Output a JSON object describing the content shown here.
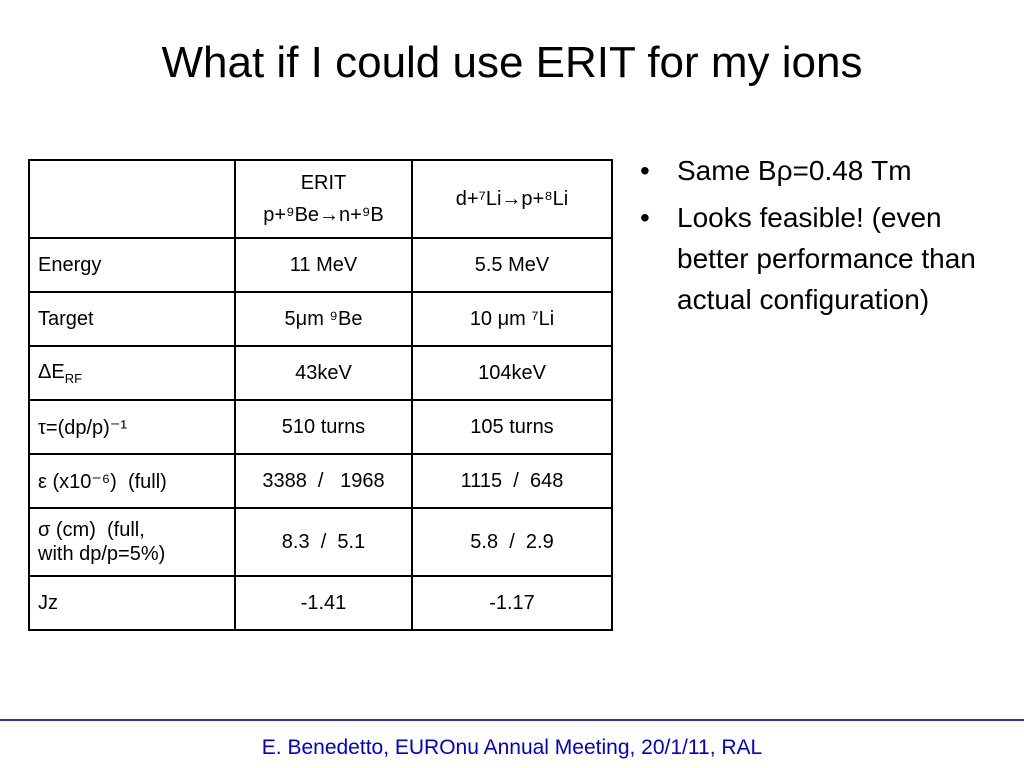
{
  "title": "What if I could use ERIT for my ions",
  "table": {
    "header": [
      "",
      "ERIT\np+⁹Be→n+⁹B",
      "d+⁷Li→p+⁸Li"
    ],
    "rows": [
      [
        "Energy",
        "11 MeV",
        "5.5 MeV"
      ],
      [
        "Target",
        "5μm ⁹Be",
        "10 μm ⁷Li"
      ],
      [
        {
          "text": "ΔE",
          "subscript": "RF"
        },
        "43keV",
        "104keV"
      ],
      [
        "τ=(dp/p)⁻¹",
        "510 turns",
        "105 turns"
      ],
      [
        "ε (x10⁻⁶)  (full)",
        "3388  /   1968",
        "1115  /  648"
      ],
      [
        "σ (cm)  (full,\nwith dp/p=5%)",
        "8.3  /  5.1",
        "5.8  /  2.9"
      ],
      [
        "Jz",
        "-1.41",
        "-1.17"
      ]
    ]
  },
  "bullets": [
    "Same Bρ=0.48 Tm",
    "Looks feasible! (even better performance than actual configuration)"
  ],
  "footer": "E. Benedetto, EUROnu Annual Meeting, 20/1/11, RAL"
}
